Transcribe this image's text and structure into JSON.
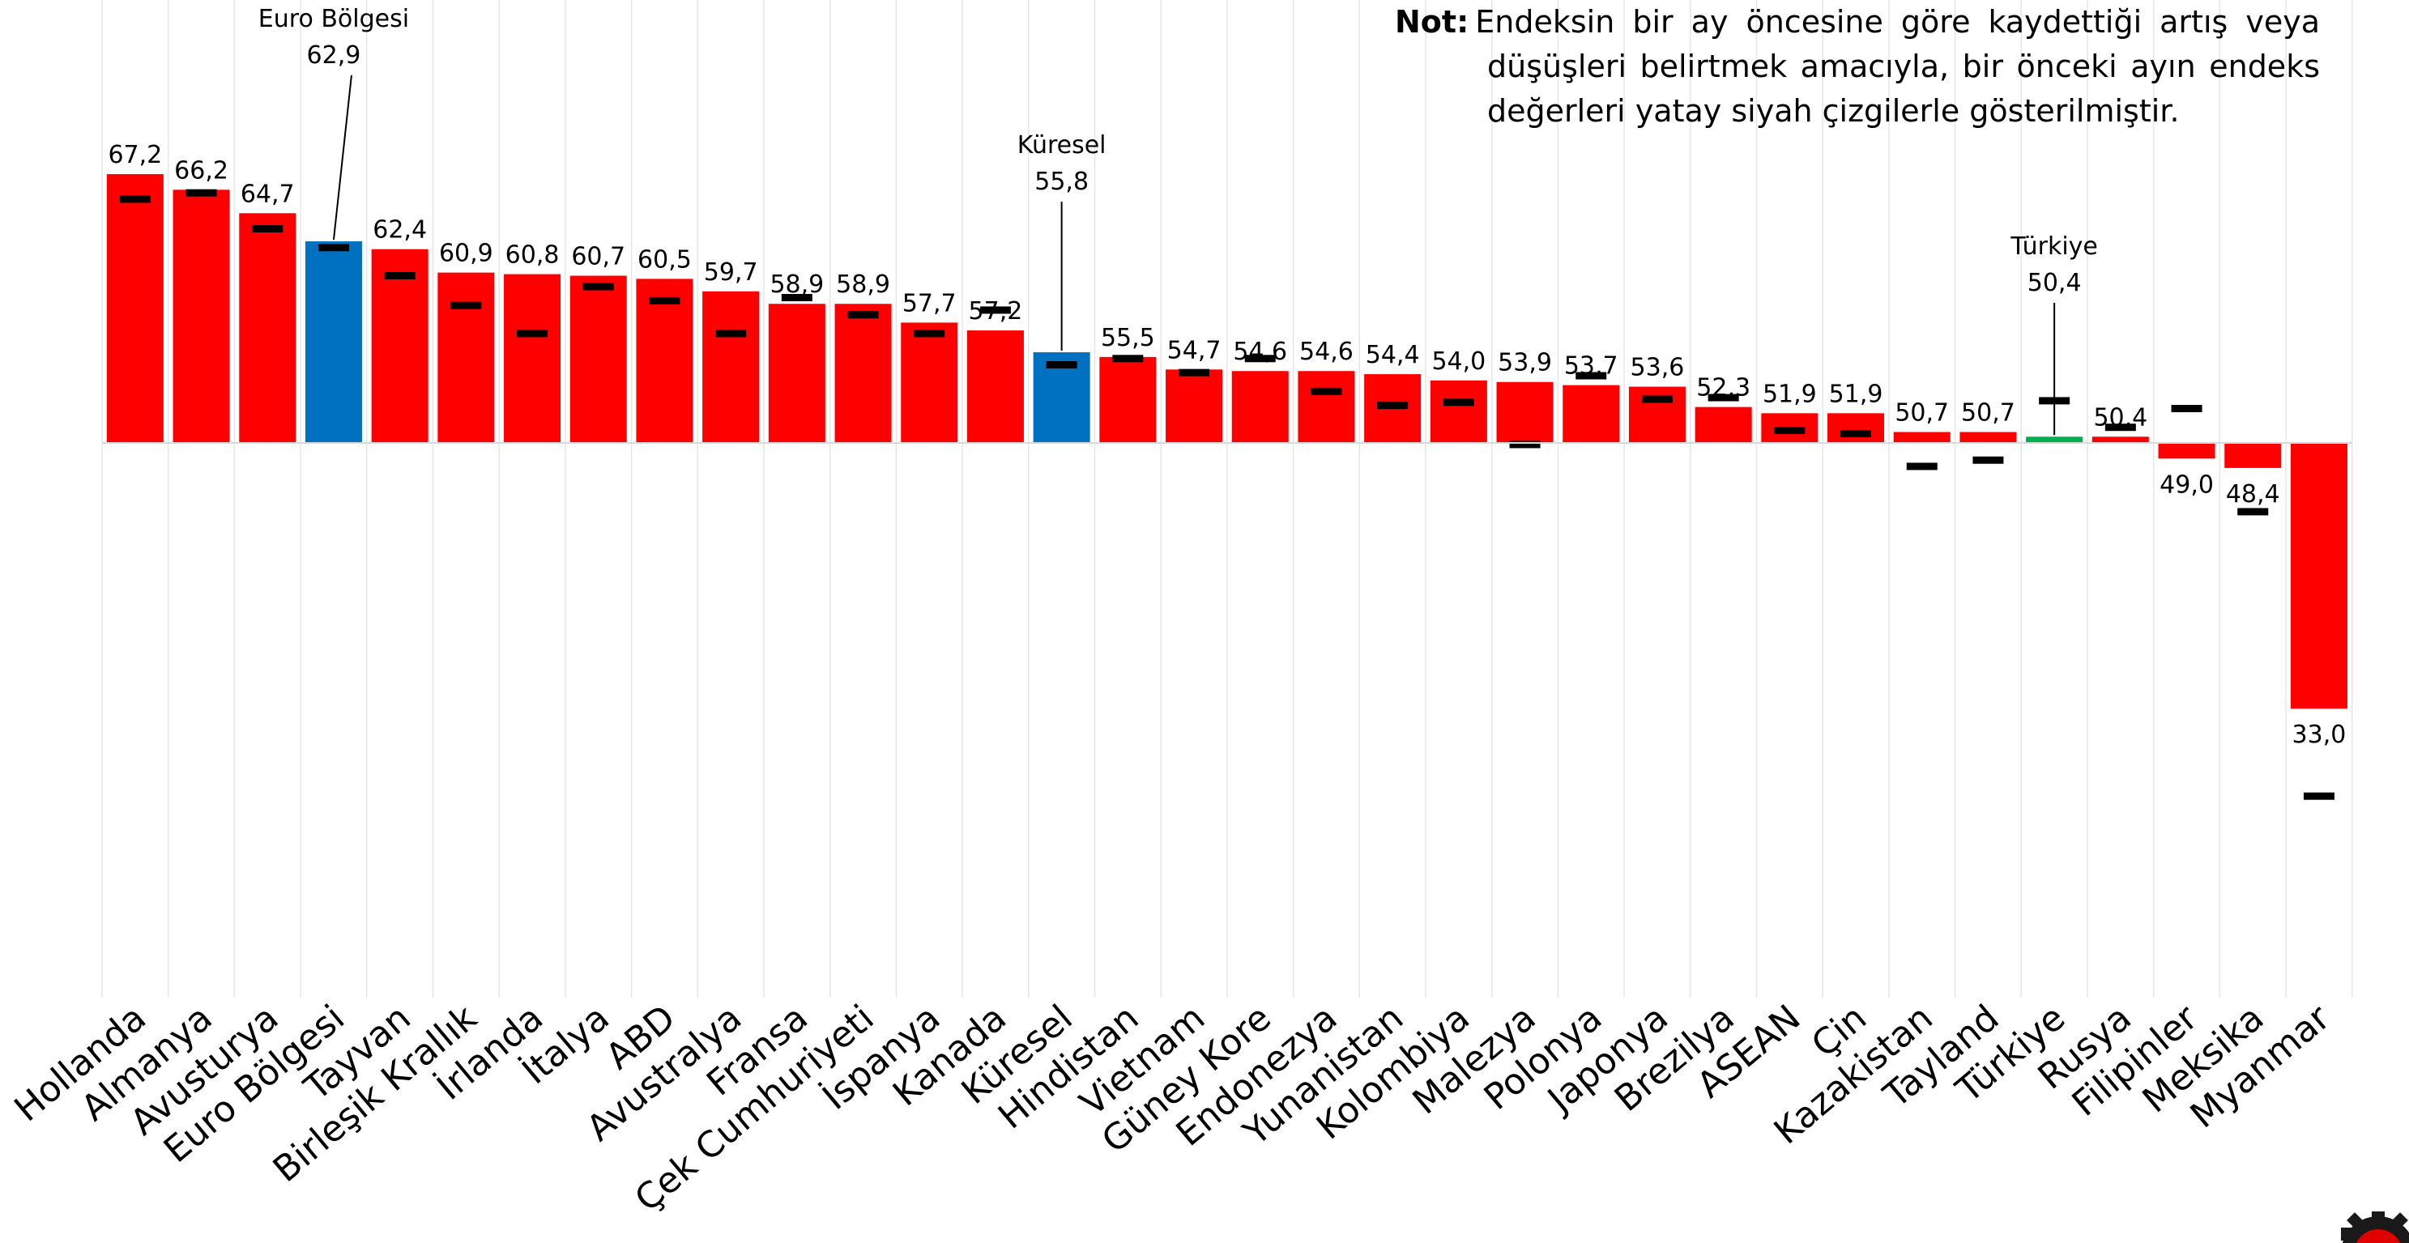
{
  "note": {
    "key": "Not:",
    "line1": "Endeksin bir ay öncesine göre kaydettiği artış veya",
    "line2": "düşüşleri belirtmek amacıyla, bir önceki ayın endeks",
    "line3": "değerleri yatay siyah çizgilerle gösterilmiştir."
  },
  "colors": {
    "default": "#ff0000",
    "highlight_blue": "#0070c0",
    "highlight_green": "#00b050",
    "previous_marker": "#000000",
    "gridline": "#e6e6e6"
  },
  "chart_data": {
    "type": "bar",
    "baseline": 50,
    "ylim": [
      30,
      68
    ],
    "grid": "vertical",
    "categories": [
      "Hollanda",
      "Almanya",
      "Avusturya",
      "Euro Bölgesi",
      "Tayvan",
      "Birleşik Krallık",
      "İrlanda",
      "İtalya",
      "ABD",
      "Avustralya",
      "Fransa",
      "Çek Cumhuriyeti",
      "İspanya",
      "Kanada",
      "Küresel",
      "Hindistan",
      "Vietnam",
      "Güney Kore",
      "Endonezya",
      "Yunanistan",
      "Kolombiya",
      "Malezya",
      "Polonya",
      "Japonya",
      "Brezilya",
      "ASEAN",
      "Çin",
      "Kazakistan",
      "Tayland",
      "Türkiye",
      "Rusya",
      "Filipinler",
      "Meksika",
      "Myanmar"
    ],
    "series": [
      {
        "values": [
          67.2,
          66.2,
          64.7,
          62.9,
          62.4,
          60.9,
          60.8,
          60.7,
          60.5,
          59.7,
          58.9,
          58.9,
          57.7,
          57.2,
          55.8,
          55.5,
          54.7,
          54.6,
          54.6,
          54.4,
          54.0,
          53.9,
          53.7,
          53.6,
          52.3,
          51.9,
          51.9,
          50.7,
          50.7,
          50.4,
          50.4,
          49.0,
          48.4,
          33.0
        ],
        "labels": [
          "67,2",
          "66,2",
          "64,7",
          "62,9",
          "62,4",
          "60,9",
          "60,8",
          "60,7",
          "60,5",
          "59,7",
          "58,9",
          "58,9",
          "57,7",
          "57,2",
          "55,8",
          "55,5",
          "54,7",
          "54,6",
          "54,6",
          "54,4",
          "54,0",
          "53,9",
          "53,7",
          "53,6",
          "52,3",
          "51,9",
          "51,9",
          "50,7",
          "50,7",
          "50,4",
          "50,4",
          "49,0",
          "48,4",
          "33,0"
        ]
      }
    ],
    "previous_month": [
      65.6,
      66.0,
      63.7,
      62.5,
      60.7,
      58.8,
      57.0,
      60.0,
      59.1,
      57.0,
      59.3,
      58.2,
      57.0,
      58.5,
      55.0,
      55.4,
      54.5,
      55.4,
      53.3,
      52.4,
      52.6,
      49.9,
      54.3,
      52.8,
      52.9,
      50.8,
      50.6,
      48.5,
      48.9,
      52.7,
      51.0,
      52.2,
      45.6,
      27.4
    ],
    "colors": [
      "default",
      "default",
      "default",
      "highlight_blue",
      "default",
      "default",
      "default",
      "default",
      "default",
      "default",
      "default",
      "default",
      "default",
      "default",
      "highlight_blue",
      "default",
      "default",
      "default",
      "default",
      "default",
      "default",
      "default",
      "default",
      "default",
      "default",
      "default",
      "default",
      "default",
      "default",
      "highlight_green",
      "default",
      "default",
      "default",
      "default"
    ],
    "callouts": [
      {
        "category": "Euro Bölgesi",
        "name": "Euro Bölgesi",
        "label": "62,9"
      },
      {
        "category": "Küresel",
        "name": "Küresel",
        "label": "55,8"
      },
      {
        "category": "Türkiye",
        "name": "Türkiye",
        "label": "50,4"
      }
    ]
  }
}
